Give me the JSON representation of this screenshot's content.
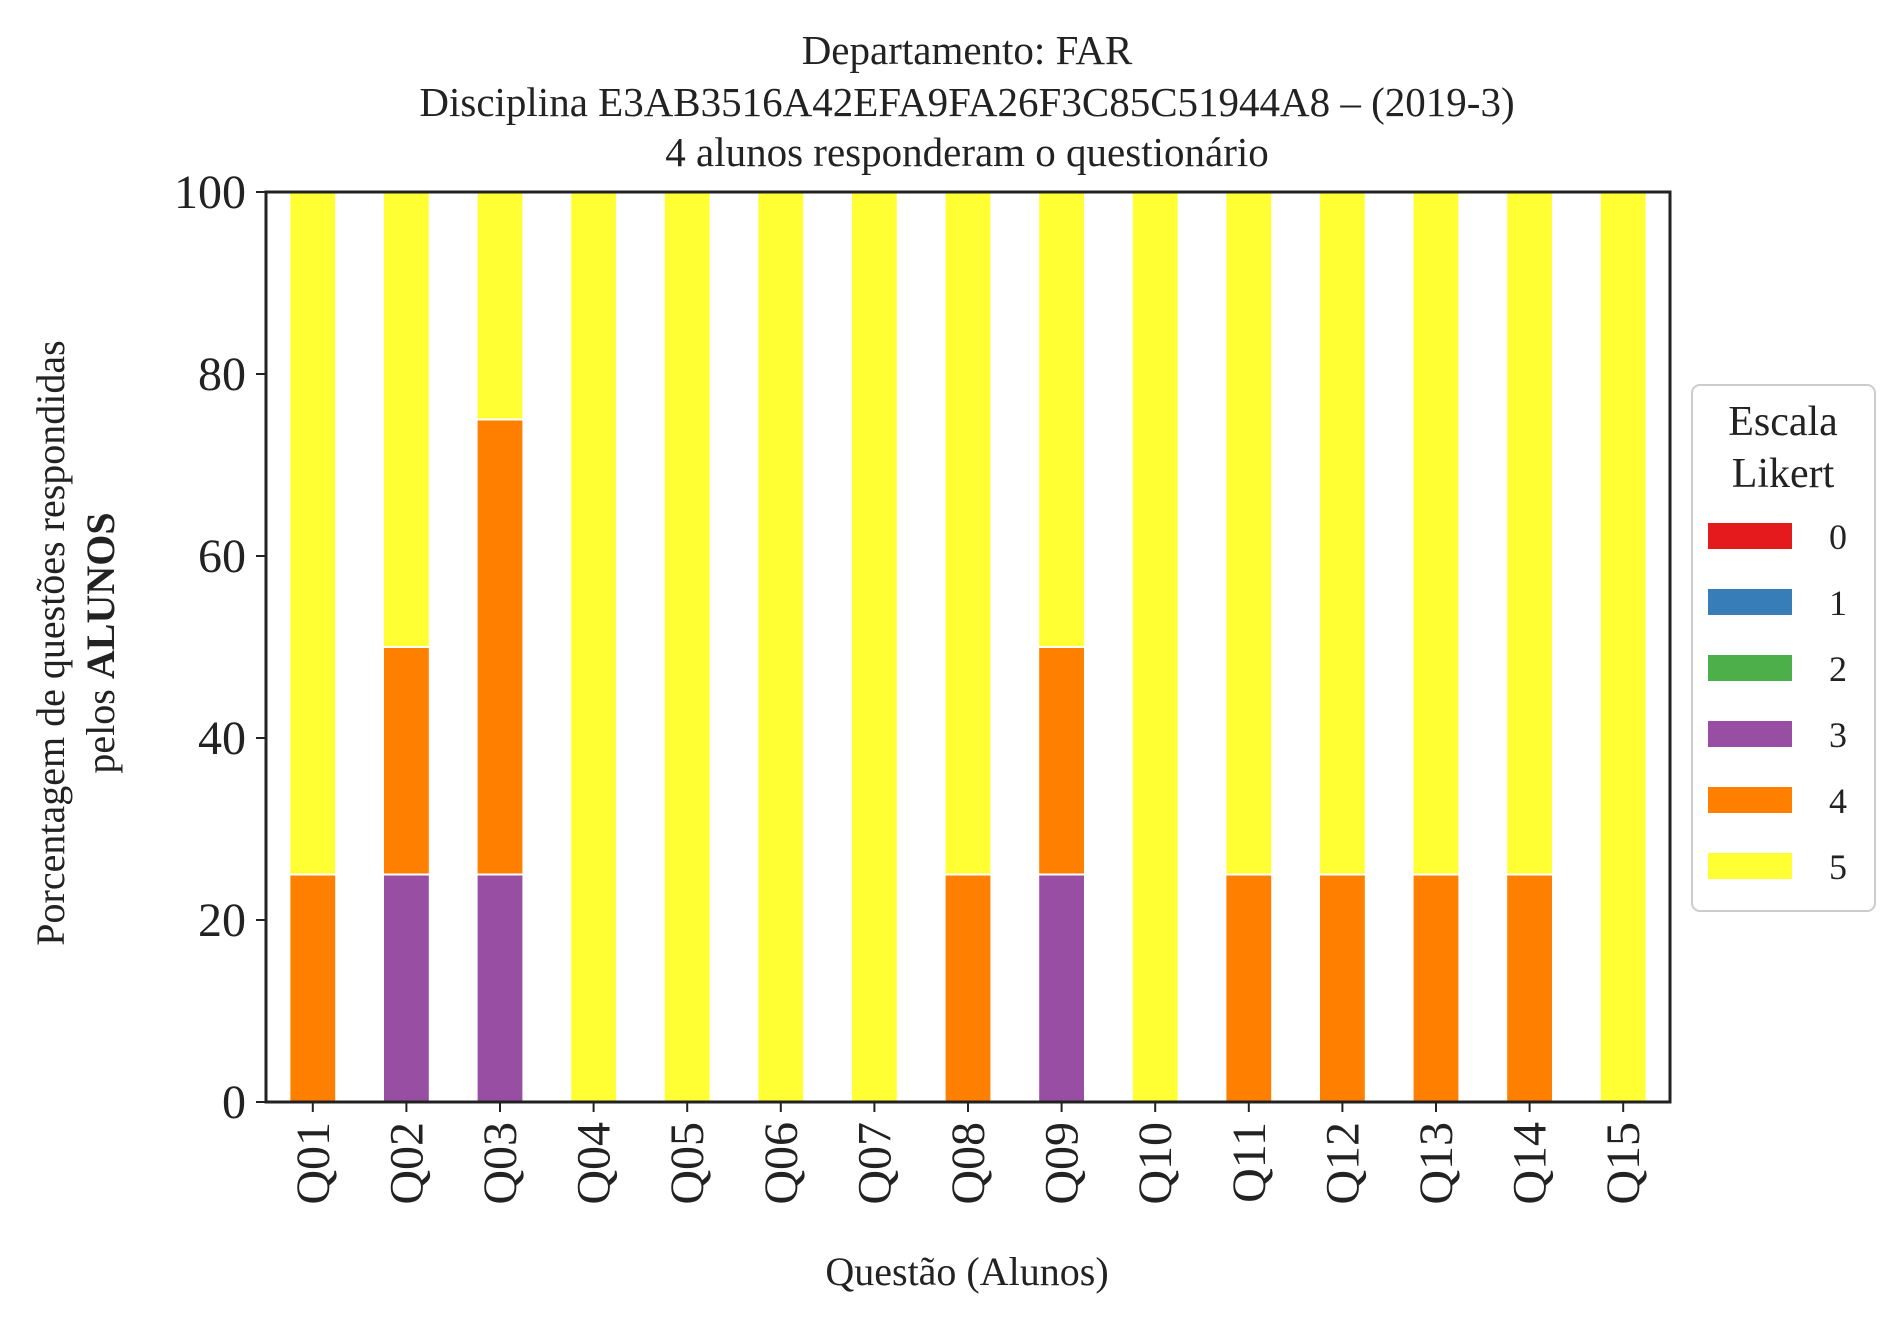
{
  "chart_data": {
    "type": "bar",
    "stacked": true,
    "title_lines": [
      "Departamento: FAR",
      "Disciplina E3AB3516A42EFA9FA26F3C85C51944A8 – (2019-3)",
      "4 alunos responderam o questionário"
    ],
    "xlabel": "Questão (Alunos)",
    "ylabel_line1": "Porcentagem de questões respondidas",
    "ylabel_line2_prefix": "pelos ",
    "ylabel_line2_bold": "ALUNOS",
    "ylim": [
      0,
      100
    ],
    "yticks": [
      0,
      20,
      40,
      60,
      80,
      100
    ],
    "grid": false,
    "legend_title_lines": [
      "Escala",
      "Likert"
    ],
    "legend_position": "right-center",
    "categories": [
      "Q01",
      "Q02",
      "Q03",
      "Q04",
      "Q05",
      "Q06",
      "Q07",
      "Q08",
      "Q09",
      "Q10",
      "Q11",
      "Q12",
      "Q13",
      "Q14",
      "Q15"
    ],
    "series": [
      {
        "name": "0",
        "color": "#e41a1c",
        "values": [
          0,
          0,
          0,
          0,
          0,
          0,
          0,
          0,
          0,
          0,
          0,
          0,
          0,
          0,
          0
        ]
      },
      {
        "name": "1",
        "color": "#377eb8",
        "values": [
          0,
          0,
          0,
          0,
          0,
          0,
          0,
          0,
          0,
          0,
          0,
          0,
          0,
          0,
          0
        ]
      },
      {
        "name": "2",
        "color": "#4daf4a",
        "values": [
          0,
          0,
          0,
          0,
          0,
          0,
          0,
          0,
          0,
          0,
          0,
          0,
          0,
          0,
          0
        ]
      },
      {
        "name": "3",
        "color": "#984ea3",
        "values": [
          0,
          25,
          25,
          0,
          0,
          0,
          0,
          0,
          25,
          0,
          0,
          0,
          0,
          0,
          0
        ]
      },
      {
        "name": "4",
        "color": "#ff7f00",
        "values": [
          25,
          25,
          50,
          0,
          0,
          0,
          0,
          25,
          25,
          0,
          25,
          25,
          25,
          25,
          0
        ]
      },
      {
        "name": "5",
        "color": "#ffff33",
        "values": [
          75,
          50,
          25,
          100,
          100,
          100,
          100,
          75,
          50,
          100,
          75,
          75,
          75,
          75,
          100
        ]
      }
    ]
  }
}
